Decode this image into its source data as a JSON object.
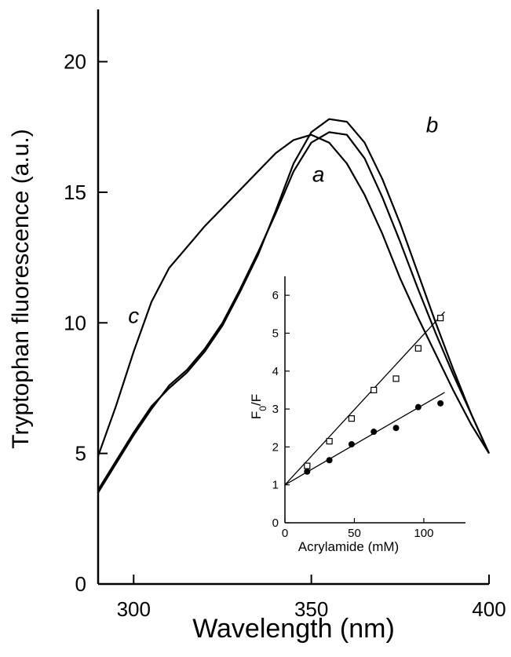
{
  "chart_data": [
    {
      "type": "line",
      "xlabel": "Wavelength (nm)",
      "ylabel": "Tryptophan fluorescence (a.u.)",
      "xlim": [
        290,
        400
      ],
      "ylim": [
        0,
        22
      ],
      "xticks": [
        300,
        350,
        400
      ],
      "yticks": [
        0,
        5,
        10,
        15,
        20
      ],
      "grid": false,
      "series": [
        {
          "name": "a",
          "x": [
            290,
            295,
            300,
            305,
            310,
            315,
            320,
            325,
            330,
            335,
            340,
            345,
            350,
            355,
            360,
            365,
            370,
            375,
            380,
            385,
            390,
            395,
            400
          ],
          "y": [
            3.5,
            4.6,
            5.7,
            6.7,
            7.6,
            8.2,
            9.0,
            10.0,
            11.3,
            12.7,
            14.2,
            15.8,
            16.9,
            17.3,
            17.2,
            16.3,
            14.8,
            13.1,
            11.3,
            9.6,
            8.0,
            6.5,
            5.0
          ]
        },
        {
          "name": "b",
          "x": [
            290,
            295,
            300,
            305,
            310,
            315,
            320,
            325,
            330,
            335,
            340,
            345,
            350,
            355,
            360,
            365,
            370,
            375,
            380,
            385,
            390,
            395,
            400
          ],
          "y": [
            3.6,
            4.7,
            5.8,
            6.8,
            7.5,
            8.1,
            8.9,
            9.9,
            11.2,
            12.6,
            14.3,
            16.1,
            17.3,
            17.8,
            17.7,
            16.9,
            15.5,
            13.8,
            11.9,
            10.0,
            8.2,
            6.5,
            5.0
          ]
        },
        {
          "name": "c",
          "x": [
            290,
            295,
            300,
            305,
            310,
            315,
            320,
            325,
            330,
            335,
            340,
            345,
            350,
            355,
            360,
            365,
            370,
            375,
            380,
            385,
            390,
            395,
            400
          ],
          "y": [
            4.9,
            6.8,
            8.9,
            10.8,
            12.1,
            12.9,
            13.7,
            14.4,
            15.1,
            15.8,
            16.5,
            17.0,
            17.2,
            16.9,
            16.1,
            14.9,
            13.4,
            11.7,
            10.2,
            8.8,
            7.4,
            6.1,
            5.0
          ]
        }
      ]
    },
    {
      "type": "scatter",
      "xlabel": "Acrylamide (mM)",
      "ylabel": "F0/F",
      "ylabel_main": "F",
      "ylabel_sub": "0",
      "ylabel_tail": "/F",
      "xlim": [
        0,
        130
      ],
      "ylim": [
        0,
        6.5
      ],
      "xticks": [
        0,
        50,
        100
      ],
      "yticks": [
        0,
        1,
        2,
        3,
        4,
        5,
        6
      ],
      "grid": false,
      "series": [
        {
          "marker": "open-square",
          "x": [
            16,
            32,
            48,
            64,
            80,
            96,
            112
          ],
          "y": [
            1.5,
            2.15,
            2.75,
            3.5,
            3.8,
            4.6,
            5.4
          ],
          "fit": {
            "intercept": 1.0,
            "slope": 0.0397
          }
        },
        {
          "marker": "filled-circle",
          "x": [
            16,
            32,
            48,
            64,
            80,
            96,
            112
          ],
          "y": [
            1.35,
            1.65,
            2.07,
            2.4,
            2.5,
            3.05,
            3.15
          ],
          "fit": {
            "intercept": 1.0,
            "slope": 0.0212
          }
        }
      ]
    }
  ]
}
